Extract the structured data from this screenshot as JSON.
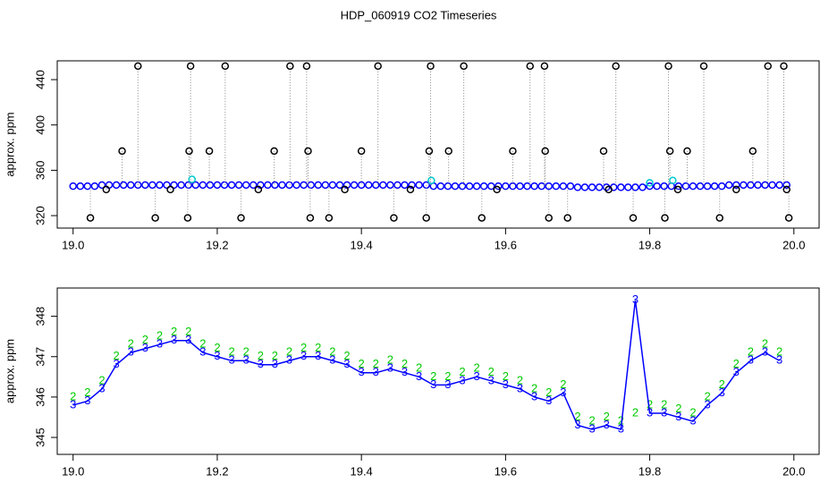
{
  "chart_data": [
    {
      "type": "scatter",
      "title": "HDP_060919  CO2 Timeseries",
      "y_label": "approx. ppm",
      "xlim": [
        18.978,
        20.035
      ],
      "ylim": [
        309,
        456.6
      ],
      "xticks": [
        {
          "value": 19,
          "label": "19.0"
        },
        19.2,
        19.4,
        19.6,
        19.8,
        {
          "value": 20,
          "label": "20.0"
        }
      ],
      "yticks": [
        320,
        360,
        400,
        440
      ],
      "series": [
        {
          "color": "#0000ff",
          "marker": "circle",
          "x": [
            19,
            19.01,
            19.02,
            19.03,
            19.04,
            19.05,
            19.06,
            19.07,
            19.08,
            19.09,
            19.1,
            19.11,
            19.12,
            19.13,
            19.14,
            19.15,
            19.16,
            19.17,
            19.18,
            19.19,
            19.2,
            19.21,
            19.22,
            19.23,
            19.24,
            19.25,
            19.26,
            19.27,
            19.28,
            19.29,
            19.3,
            19.31,
            19.32,
            19.33,
            19.34,
            19.35,
            19.36,
            19.37,
            19.38,
            19.39,
            19.4,
            19.41,
            19.42,
            19.43,
            19.44,
            19.45,
            19.46,
            19.47,
            19.48,
            19.49,
            19.5,
            19.51,
            19.52,
            19.53,
            19.54,
            19.55,
            19.56,
            19.57,
            19.58,
            19.59,
            19.6,
            19.61,
            19.62,
            19.63,
            19.64,
            19.65,
            19.66,
            19.67,
            19.68,
            19.69,
            19.7,
            19.71,
            19.72,
            19.73,
            19.74,
            19.75,
            19.76,
            19.77,
            19.78,
            19.79,
            19.8,
            19.81,
            19.82,
            19.83,
            19.84,
            19.85,
            19.86,
            19.87,
            19.88,
            19.89,
            19.9,
            19.91,
            19.92,
            19.93,
            19.94,
            19.95,
            19.96,
            19.97,
            19.98,
            19.99
          ],
          "values": [
            346,
            346,
            346,
            346,
            347,
            347,
            347,
            347,
            347,
            347,
            347,
            347,
            347,
            347,
            347,
            347,
            347,
            347,
            347,
            347,
            347,
            347,
            347,
            347,
            347,
            347,
            347,
            347,
            347,
            347,
            347,
            347,
            347,
            347,
            347,
            347,
            347,
            347,
            347,
            347,
            347,
            347,
            347,
            347,
            347,
            347,
            347,
            347,
            347,
            347,
            346,
            346,
            346,
            346,
            346,
            346,
            346,
            346,
            346,
            346,
            346,
            346,
            346,
            346,
            346,
            346,
            346,
            346,
            346,
            346,
            345,
            345,
            345,
            345,
            345,
            345,
            345,
            345,
            345,
            345,
            346,
            346,
            346,
            346,
            346,
            346,
            346,
            346,
            346,
            346,
            346,
            347,
            347,
            347,
            347,
            347,
            347,
            347,
            347,
            347
          ]
        },
        {
          "color": "#000000",
          "marker": "circle",
          "drop_to": 0,
          "drop_color": "#888888",
          "x": [
            19.09,
            19.163,
            19.211,
            19.301,
            19.324,
            19.423,
            19.496,
            19.542,
            19.634,
            19.654,
            19.753,
            19.826,
            19.875,
            19.964,
            19.986,
            19.068,
            19.161,
            19.189,
            19.279,
            19.326,
            19.4,
            19.494,
            19.521,
            19.61,
            19.655,
            19.736,
            19.828,
            19.852,
            19.943,
            19.024,
            19.114,
            19.159,
            19.233,
            19.329,
            19.355,
            19.445,
            19.49,
            19.567,
            19.66,
            19.686,
            19.777,
            19.821,
            19.897,
            19.993,
            19.046,
            19.135,
            19.257,
            19.377,
            19.468,
            19.588,
            19.743,
            19.839,
            19.92,
            19.99
          ],
          "values": [
            452,
            452,
            452,
            452,
            452,
            452,
            452,
            452,
            452,
            452,
            452,
            452,
            452,
            452,
            452,
            377,
            377,
            377,
            377,
            377,
            377,
            377,
            377,
            377,
            377,
            377,
            377,
            377,
            377,
            318,
            318,
            318,
            318,
            318,
            318,
            318,
            318,
            318,
            318,
            318,
            318,
            318,
            318,
            318,
            343,
            343,
            343,
            343,
            343,
            343,
            343,
            343,
            343,
            343
          ]
        },
        {
          "color": "#00cccc",
          "marker": "circle",
          "x": [
            19.165,
            19.497,
            19.832,
            19.8
          ],
          "values": [
            352,
            351,
            351,
            349
          ]
        }
      ]
    },
    {
      "type": "scatter",
      "y_label": "approx. ppm",
      "xlim": [
        18.978,
        20.035
      ],
      "ylim": [
        344.58,
        348.7
      ],
      "xticks": [
        {
          "value": 19,
          "label": "19.0"
        },
        19.2,
        19.4,
        19.6,
        19.8,
        {
          "value": 20,
          "label": "20.0"
        }
      ],
      "yticks": [
        345,
        346,
        347,
        348
      ],
      "x": [
        19,
        19.02,
        19.04,
        19.06,
        19.08,
        19.1,
        19.12,
        19.14,
        19.16,
        19.18,
        19.2,
        19.22,
        19.24,
        19.26,
        19.28,
        19.3,
        19.32,
        19.34,
        19.36,
        19.38,
        19.4,
        19.42,
        19.44,
        19.46,
        19.48,
        19.5,
        19.52,
        19.54,
        19.56,
        19.58,
        19.6,
        19.62,
        19.64,
        19.66,
        19.68,
        19.7,
        19.72,
        19.74,
        19.76,
        19.78,
        19.8,
        19.82,
        19.84,
        19.86,
        19.88,
        19.9,
        19.92,
        19.94,
        19.96,
        19.98
      ],
      "series": [
        {
          "name": "2",
          "color": "#00cc00",
          "marker": "name",
          "line": false,
          "values": [
            346.0,
            346.1,
            346.4,
            347.0,
            347.3,
            347.4,
            347.5,
            347.6,
            347.6,
            347.3,
            347.2,
            347.1,
            347.1,
            347.0,
            347.0,
            347.1,
            347.2,
            347.2,
            347.1,
            347.0,
            346.8,
            346.8,
            346.9,
            346.8,
            346.7,
            346.5,
            346.5,
            346.6,
            346.7,
            346.6,
            346.5,
            346.4,
            346.2,
            346.1,
            346.3,
            345.5,
            345.4,
            345.5,
            345.4,
            345.6,
            345.8,
            345.8,
            345.7,
            345.6,
            346.0,
            346.3,
            346.8,
            347.1,
            347.3,
            347.1
          ]
        },
        {
          "name": "3",
          "color": "#0000ff",
          "marker": "name",
          "line": true,
          "values": [
            345.8,
            345.9,
            346.2,
            346.8,
            347.1,
            347.2,
            347.3,
            347.4,
            347.4,
            347.1,
            347.0,
            346.9,
            346.9,
            346.8,
            346.8,
            346.9,
            347.0,
            347.0,
            346.9,
            346.8,
            346.6,
            346.6,
            346.7,
            346.6,
            346.5,
            346.3,
            346.3,
            346.4,
            346.5,
            346.4,
            346.3,
            346.2,
            346.0,
            345.9,
            346.1,
            345.3,
            345.2,
            345.3,
            345.2,
            348.4,
            345.6,
            345.6,
            345.5,
            345.4,
            345.8,
            346.1,
            346.6,
            346.9,
            347.1,
            346.9
          ]
        }
      ]
    }
  ]
}
